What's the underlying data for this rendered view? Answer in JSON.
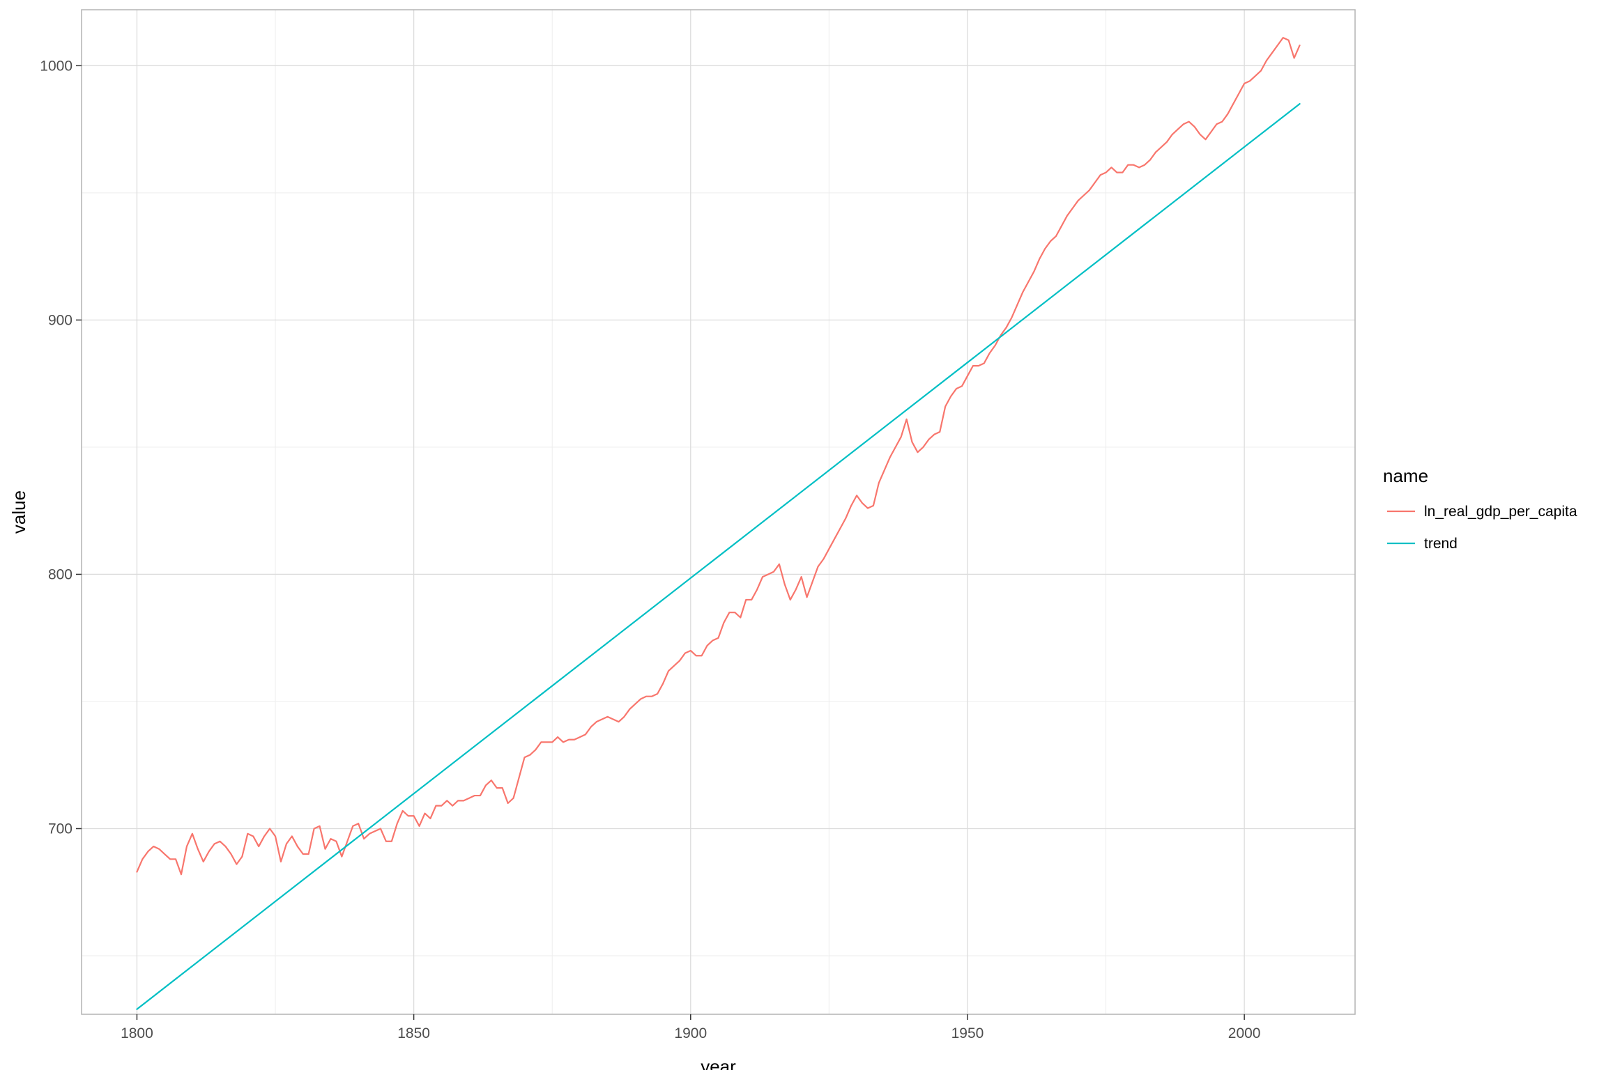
{
  "chart_data": {
    "type": "line",
    "title": "",
    "xlabel": "year",
    "ylabel": "value",
    "xlim": [
      1790,
      2020
    ],
    "ylim": [
      627,
      1022
    ],
    "x_ticks": [
      1800,
      1850,
      1900,
      1950,
      2000
    ],
    "x_tick_labels": [
      "1800",
      "1850",
      "1900",
      "1950",
      "2000"
    ],
    "x_minor_ticks": [
      1825,
      1875,
      1925,
      1975
    ],
    "y_ticks": [
      700,
      800,
      900,
      1000
    ],
    "y_tick_labels": [
      "700",
      "800",
      "900",
      "1000"
    ],
    "y_minor_ticks": [
      650,
      750,
      850,
      950
    ],
    "grid": true,
    "legend": {
      "title": "name",
      "position": "right"
    },
    "series": [
      {
        "name": "ln_real_gdp_per_capita",
        "color": "#F8766D",
        "points": [
          [
            1800,
            683
          ],
          [
            1801,
            688
          ],
          [
            1802,
            691
          ],
          [
            1803,
            693
          ],
          [
            1804,
            692
          ],
          [
            1805,
            690
          ],
          [
            1806,
            688
          ],
          [
            1807,
            688
          ],
          [
            1808,
            682
          ],
          [
            1809,
            693
          ],
          [
            1810,
            698
          ],
          [
            1811,
            692
          ],
          [
            1812,
            687
          ],
          [
            1813,
            691
          ],
          [
            1814,
            694
          ],
          [
            1815,
            695
          ],
          [
            1816,
            693
          ],
          [
            1817,
            690
          ],
          [
            1818,
            686
          ],
          [
            1819,
            689
          ],
          [
            1820,
            698
          ],
          [
            1821,
            697
          ],
          [
            1822,
            693
          ],
          [
            1823,
            697
          ],
          [
            1824,
            700
          ],
          [
            1825,
            697
          ],
          [
            1826,
            687
          ],
          [
            1827,
            694
          ],
          [
            1828,
            697
          ],
          [
            1829,
            693
          ],
          [
            1830,
            690
          ],
          [
            1831,
            690
          ],
          [
            1832,
            700
          ],
          [
            1833,
            701
          ],
          [
            1834,
            692
          ],
          [
            1835,
            696
          ],
          [
            1836,
            695
          ],
          [
            1837,
            689
          ],
          [
            1838,
            695
          ],
          [
            1839,
            701
          ],
          [
            1840,
            702
          ],
          [
            1841,
            696
          ],
          [
            1842,
            698
          ],
          [
            1843,
            699
          ],
          [
            1844,
            700
          ],
          [
            1845,
            695
          ],
          [
            1846,
            695
          ],
          [
            1847,
            702
          ],
          [
            1848,
            707
          ],
          [
            1849,
            705
          ],
          [
            1850,
            705
          ],
          [
            1851,
            701
          ],
          [
            1852,
            706
          ],
          [
            1853,
            704
          ],
          [
            1854,
            709
          ],
          [
            1855,
            709
          ],
          [
            1856,
            711
          ],
          [
            1857,
            709
          ],
          [
            1858,
            711
          ],
          [
            1859,
            711
          ],
          [
            1860,
            712
          ],
          [
            1861,
            713
          ],
          [
            1862,
            713
          ],
          [
            1863,
            717
          ],
          [
            1864,
            719
          ],
          [
            1865,
            716
          ],
          [
            1866,
            716
          ],
          [
            1867,
            710
          ],
          [
            1868,
            712
          ],
          [
            1869,
            720
          ],
          [
            1870,
            728
          ],
          [
            1871,
            729
          ],
          [
            1872,
            731
          ],
          [
            1873,
            734
          ],
          [
            1874,
            734
          ],
          [
            1875,
            734
          ],
          [
            1876,
            736
          ],
          [
            1877,
            734
          ],
          [
            1878,
            735
          ],
          [
            1879,
            735
          ],
          [
            1880,
            736
          ],
          [
            1881,
            737
          ],
          [
            1882,
            740
          ],
          [
            1883,
            742
          ],
          [
            1884,
            743
          ],
          [
            1885,
            744
          ],
          [
            1886,
            743
          ],
          [
            1887,
            742
          ],
          [
            1888,
            744
          ],
          [
            1889,
            747
          ],
          [
            1890,
            749
          ],
          [
            1891,
            751
          ],
          [
            1892,
            752
          ],
          [
            1893,
            752
          ],
          [
            1894,
            753
          ],
          [
            1895,
            757
          ],
          [
            1896,
            762
          ],
          [
            1897,
            764
          ],
          [
            1898,
            766
          ],
          [
            1899,
            769
          ],
          [
            1900,
            770
          ],
          [
            1901,
            768
          ],
          [
            1902,
            768
          ],
          [
            1903,
            772
          ],
          [
            1904,
            774
          ],
          [
            1905,
            775
          ],
          [
            1906,
            781
          ],
          [
            1907,
            785
          ],
          [
            1908,
            785
          ],
          [
            1909,
            783
          ],
          [
            1910,
            790
          ],
          [
            1911,
            790
          ],
          [
            1912,
            794
          ],
          [
            1913,
            799
          ],
          [
            1914,
            800
          ],
          [
            1915,
            801
          ],
          [
            1916,
            804
          ],
          [
            1917,
            796
          ],
          [
            1918,
            790
          ],
          [
            1919,
            794
          ],
          [
            1920,
            799
          ],
          [
            1921,
            791
          ],
          [
            1922,
            797
          ],
          [
            1923,
            803
          ],
          [
            1924,
            806
          ],
          [
            1925,
            810
          ],
          [
            1926,
            814
          ],
          [
            1927,
            818
          ],
          [
            1928,
            822
          ],
          [
            1929,
            827
          ],
          [
            1930,
            831
          ],
          [
            1931,
            828
          ],
          [
            1932,
            826
          ],
          [
            1933,
            827
          ],
          [
            1934,
            836
          ],
          [
            1935,
            841
          ],
          [
            1936,
            846
          ],
          [
            1937,
            850
          ],
          [
            1938,
            854
          ],
          [
            1939,
            861
          ],
          [
            1940,
            852
          ],
          [
            1941,
            848
          ],
          [
            1942,
            850
          ],
          [
            1943,
            853
          ],
          [
            1944,
            855
          ],
          [
            1945,
            856
          ],
          [
            1946,
            866
          ],
          [
            1947,
            870
          ],
          [
            1948,
            873
          ],
          [
            1949,
            874
          ],
          [
            1950,
            878
          ],
          [
            1951,
            882
          ],
          [
            1952,
            882
          ],
          [
            1953,
            883
          ],
          [
            1954,
            887
          ],
          [
            1955,
            890
          ],
          [
            1956,
            894
          ],
          [
            1957,
            897
          ],
          [
            1958,
            901
          ],
          [
            1959,
            906
          ],
          [
            1960,
            911
          ],
          [
            1961,
            915
          ],
          [
            1962,
            919
          ],
          [
            1963,
            924
          ],
          [
            1964,
            928
          ],
          [
            1965,
            931
          ],
          [
            1966,
            933
          ],
          [
            1967,
            937
          ],
          [
            1968,
            941
          ],
          [
            1969,
            944
          ],
          [
            1970,
            947
          ],
          [
            1971,
            949
          ],
          [
            1972,
            951
          ],
          [
            1973,
            954
          ],
          [
            1974,
            957
          ],
          [
            1975,
            958
          ],
          [
            1976,
            960
          ],
          [
            1977,
            958
          ],
          [
            1978,
            958
          ],
          [
            1979,
            961
          ],
          [
            1980,
            961
          ],
          [
            1981,
            960
          ],
          [
            1982,
            961
          ],
          [
            1983,
            963
          ],
          [
            1984,
            966
          ],
          [
            1985,
            968
          ],
          [
            1986,
            970
          ],
          [
            1987,
            973
          ],
          [
            1988,
            975
          ],
          [
            1989,
            977
          ],
          [
            1990,
            978
          ],
          [
            1991,
            976
          ],
          [
            1992,
            973
          ],
          [
            1993,
            971
          ],
          [
            1994,
            974
          ],
          [
            1995,
            977
          ],
          [
            1996,
            978
          ],
          [
            1997,
            981
          ],
          [
            1998,
            985
          ],
          [
            1999,
            989
          ],
          [
            2000,
            993
          ],
          [
            2001,
            994
          ],
          [
            2002,
            996
          ],
          [
            2003,
            998
          ],
          [
            2004,
            1002
          ],
          [
            2005,
            1005
          ],
          [
            2006,
            1008
          ],
          [
            2007,
            1011
          ],
          [
            2008,
            1010
          ],
          [
            2009,
            1003
          ],
          [
            2010,
            1008
          ]
        ]
      },
      {
        "name": "trend",
        "color": "#00BFC4",
        "points": [
          [
            1800,
            629
          ],
          [
            2010,
            985
          ]
        ]
      }
    ]
  }
}
